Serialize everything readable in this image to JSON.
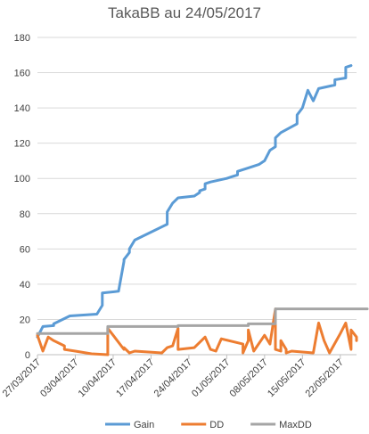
{
  "chart_data": {
    "type": "line",
    "title": "TakaBB au 24/05/2017",
    "xlabel": "",
    "ylabel": "",
    "x_type": "date",
    "xlim": [
      "2017-03-27",
      "2017-05-25"
    ],
    "ylim": [
      0,
      180
    ],
    "y_ticks": [
      0,
      20,
      40,
      60,
      80,
      100,
      120,
      140,
      160,
      180
    ],
    "x_ticks": [
      "27/03/2017",
      "03/04/2017",
      "10/04/2017",
      "17/04/2017",
      "24/04/2017",
      "01/05/2017",
      "08/05/2017",
      "15/05/2017",
      "22/05/2017"
    ],
    "x_tick_dates": [
      "2017-03-27",
      "2017-04-03",
      "2017-04-10",
      "2017-04-17",
      "2017-04-24",
      "2017-05-01",
      "2017-05-08",
      "2017-05-15",
      "2017-05-22"
    ],
    "grid": true,
    "legend": "bottom",
    "series": [
      {
        "name": "Gain",
        "color": "#5b9bd5",
        "points": [
          [
            "2017-03-27",
            10
          ],
          [
            "2017-03-28",
            16
          ],
          [
            "2017-03-30",
            16.5
          ],
          [
            "2017-03-30",
            17.5
          ],
          [
            "2017-04-02",
            22
          ],
          [
            "2017-04-07",
            23
          ],
          [
            "2017-04-08",
            28
          ],
          [
            "2017-04-08",
            35
          ],
          [
            "2017-04-11",
            36
          ],
          [
            "2017-04-12",
            53
          ],
          [
            "2017-04-12",
            54
          ],
          [
            "2017-04-13",
            58
          ],
          [
            "2017-04-13",
            60
          ],
          [
            "2017-04-14",
            65
          ],
          [
            "2017-04-20",
            74
          ],
          [
            "2017-04-20",
            81
          ],
          [
            "2017-04-21",
            86
          ],
          [
            "2017-04-22",
            89
          ],
          [
            "2017-04-25",
            90
          ],
          [
            "2017-04-26",
            92
          ],
          [
            "2017-04-26",
            93
          ],
          [
            "2017-04-27",
            94
          ],
          [
            "2017-04-27",
            97
          ],
          [
            "2017-04-28",
            98
          ],
          [
            "2017-05-01",
            100
          ],
          [
            "2017-05-02",
            101
          ],
          [
            "2017-05-03",
            102
          ],
          [
            "2017-05-03",
            104
          ],
          [
            "2017-05-05",
            106
          ],
          [
            "2017-05-06",
            107
          ],
          [
            "2017-05-07",
            108
          ],
          [
            "2017-05-08",
            110
          ],
          [
            "2017-05-09",
            116
          ],
          [
            "2017-05-10",
            118
          ],
          [
            "2017-05-10",
            123
          ],
          [
            "2017-05-11",
            126
          ],
          [
            "2017-05-14",
            131
          ],
          [
            "2017-05-14",
            136
          ],
          [
            "2017-05-15",
            140
          ],
          [
            "2017-05-16",
            150
          ],
          [
            "2017-05-17",
            144
          ],
          [
            "2017-05-18",
            151
          ],
          [
            "2017-05-21",
            153
          ],
          [
            "2017-05-21",
            156
          ],
          [
            "2017-05-23",
            157
          ],
          [
            "2017-05-23",
            163
          ],
          [
            "2017-05-24",
            164
          ]
        ]
      },
      {
        "name": "DD",
        "color": "#ed7d31",
        "points": [
          [
            "2017-03-27",
            11
          ],
          [
            "2017-03-28",
            2
          ],
          [
            "2017-03-29",
            10
          ],
          [
            "2017-03-30",
            8
          ],
          [
            "2017-04-01",
            5
          ],
          [
            "2017-04-01",
            3
          ],
          [
            "2017-04-03",
            2
          ],
          [
            "2017-04-06",
            0.5
          ],
          [
            "2017-04-09",
            0
          ],
          [
            "2017-04-09",
            15
          ],
          [
            "2017-04-12",
            3
          ],
          [
            "2017-04-12",
            4
          ],
          [
            "2017-04-13",
            1
          ],
          [
            "2017-04-14",
            2
          ],
          [
            "2017-04-19",
            1
          ],
          [
            "2017-04-20",
            4
          ],
          [
            "2017-04-21",
            5
          ],
          [
            "2017-04-22",
            15
          ],
          [
            "2017-04-22",
            3
          ],
          [
            "2017-04-25",
            4
          ],
          [
            "2017-04-27",
            10
          ],
          [
            "2017-04-28",
            3
          ],
          [
            "2017-04-29",
            2
          ],
          [
            "2017-04-30",
            9
          ],
          [
            "2017-05-04",
            6
          ],
          [
            "2017-05-04",
            4
          ],
          [
            "2017-05-04",
            1
          ],
          [
            "2017-05-05",
            8
          ],
          [
            "2017-05-05",
            14
          ],
          [
            "2017-05-06",
            2
          ],
          [
            "2017-05-08",
            11
          ],
          [
            "2017-05-09",
            6
          ],
          [
            "2017-05-10",
            26
          ],
          [
            "2017-05-10",
            3
          ],
          [
            "2017-05-11",
            2
          ],
          [
            "2017-05-11",
            8
          ],
          [
            "2017-05-12",
            3
          ],
          [
            "2017-05-12",
            1
          ],
          [
            "2017-05-13",
            2
          ],
          [
            "2017-05-17",
            1
          ],
          [
            "2017-05-18",
            18
          ],
          [
            "2017-05-19",
            8
          ],
          [
            "2017-05-20",
            1
          ],
          [
            "2017-05-22",
            12
          ],
          [
            "2017-05-23",
            18
          ],
          [
            "2017-05-24",
            3
          ],
          [
            "2017-05-24",
            14
          ],
          [
            "2017-05-25",
            10
          ],
          [
            "2017-05-25",
            8
          ]
        ]
      },
      {
        "name": "MaxDD",
        "color": "#a5a5a5",
        "points": [
          [
            "2017-03-27",
            12
          ],
          [
            "2017-04-09",
            12
          ],
          [
            "2017-04-09",
            16
          ],
          [
            "2017-04-22",
            16
          ],
          [
            "2017-04-22",
            16.5
          ],
          [
            "2017-05-05",
            16.5
          ],
          [
            "2017-05-05",
            17.5
          ],
          [
            "2017-05-10",
            17.5
          ],
          [
            "2017-05-10",
            26
          ],
          [
            "2017-05-27",
            26
          ]
        ]
      }
    ]
  }
}
